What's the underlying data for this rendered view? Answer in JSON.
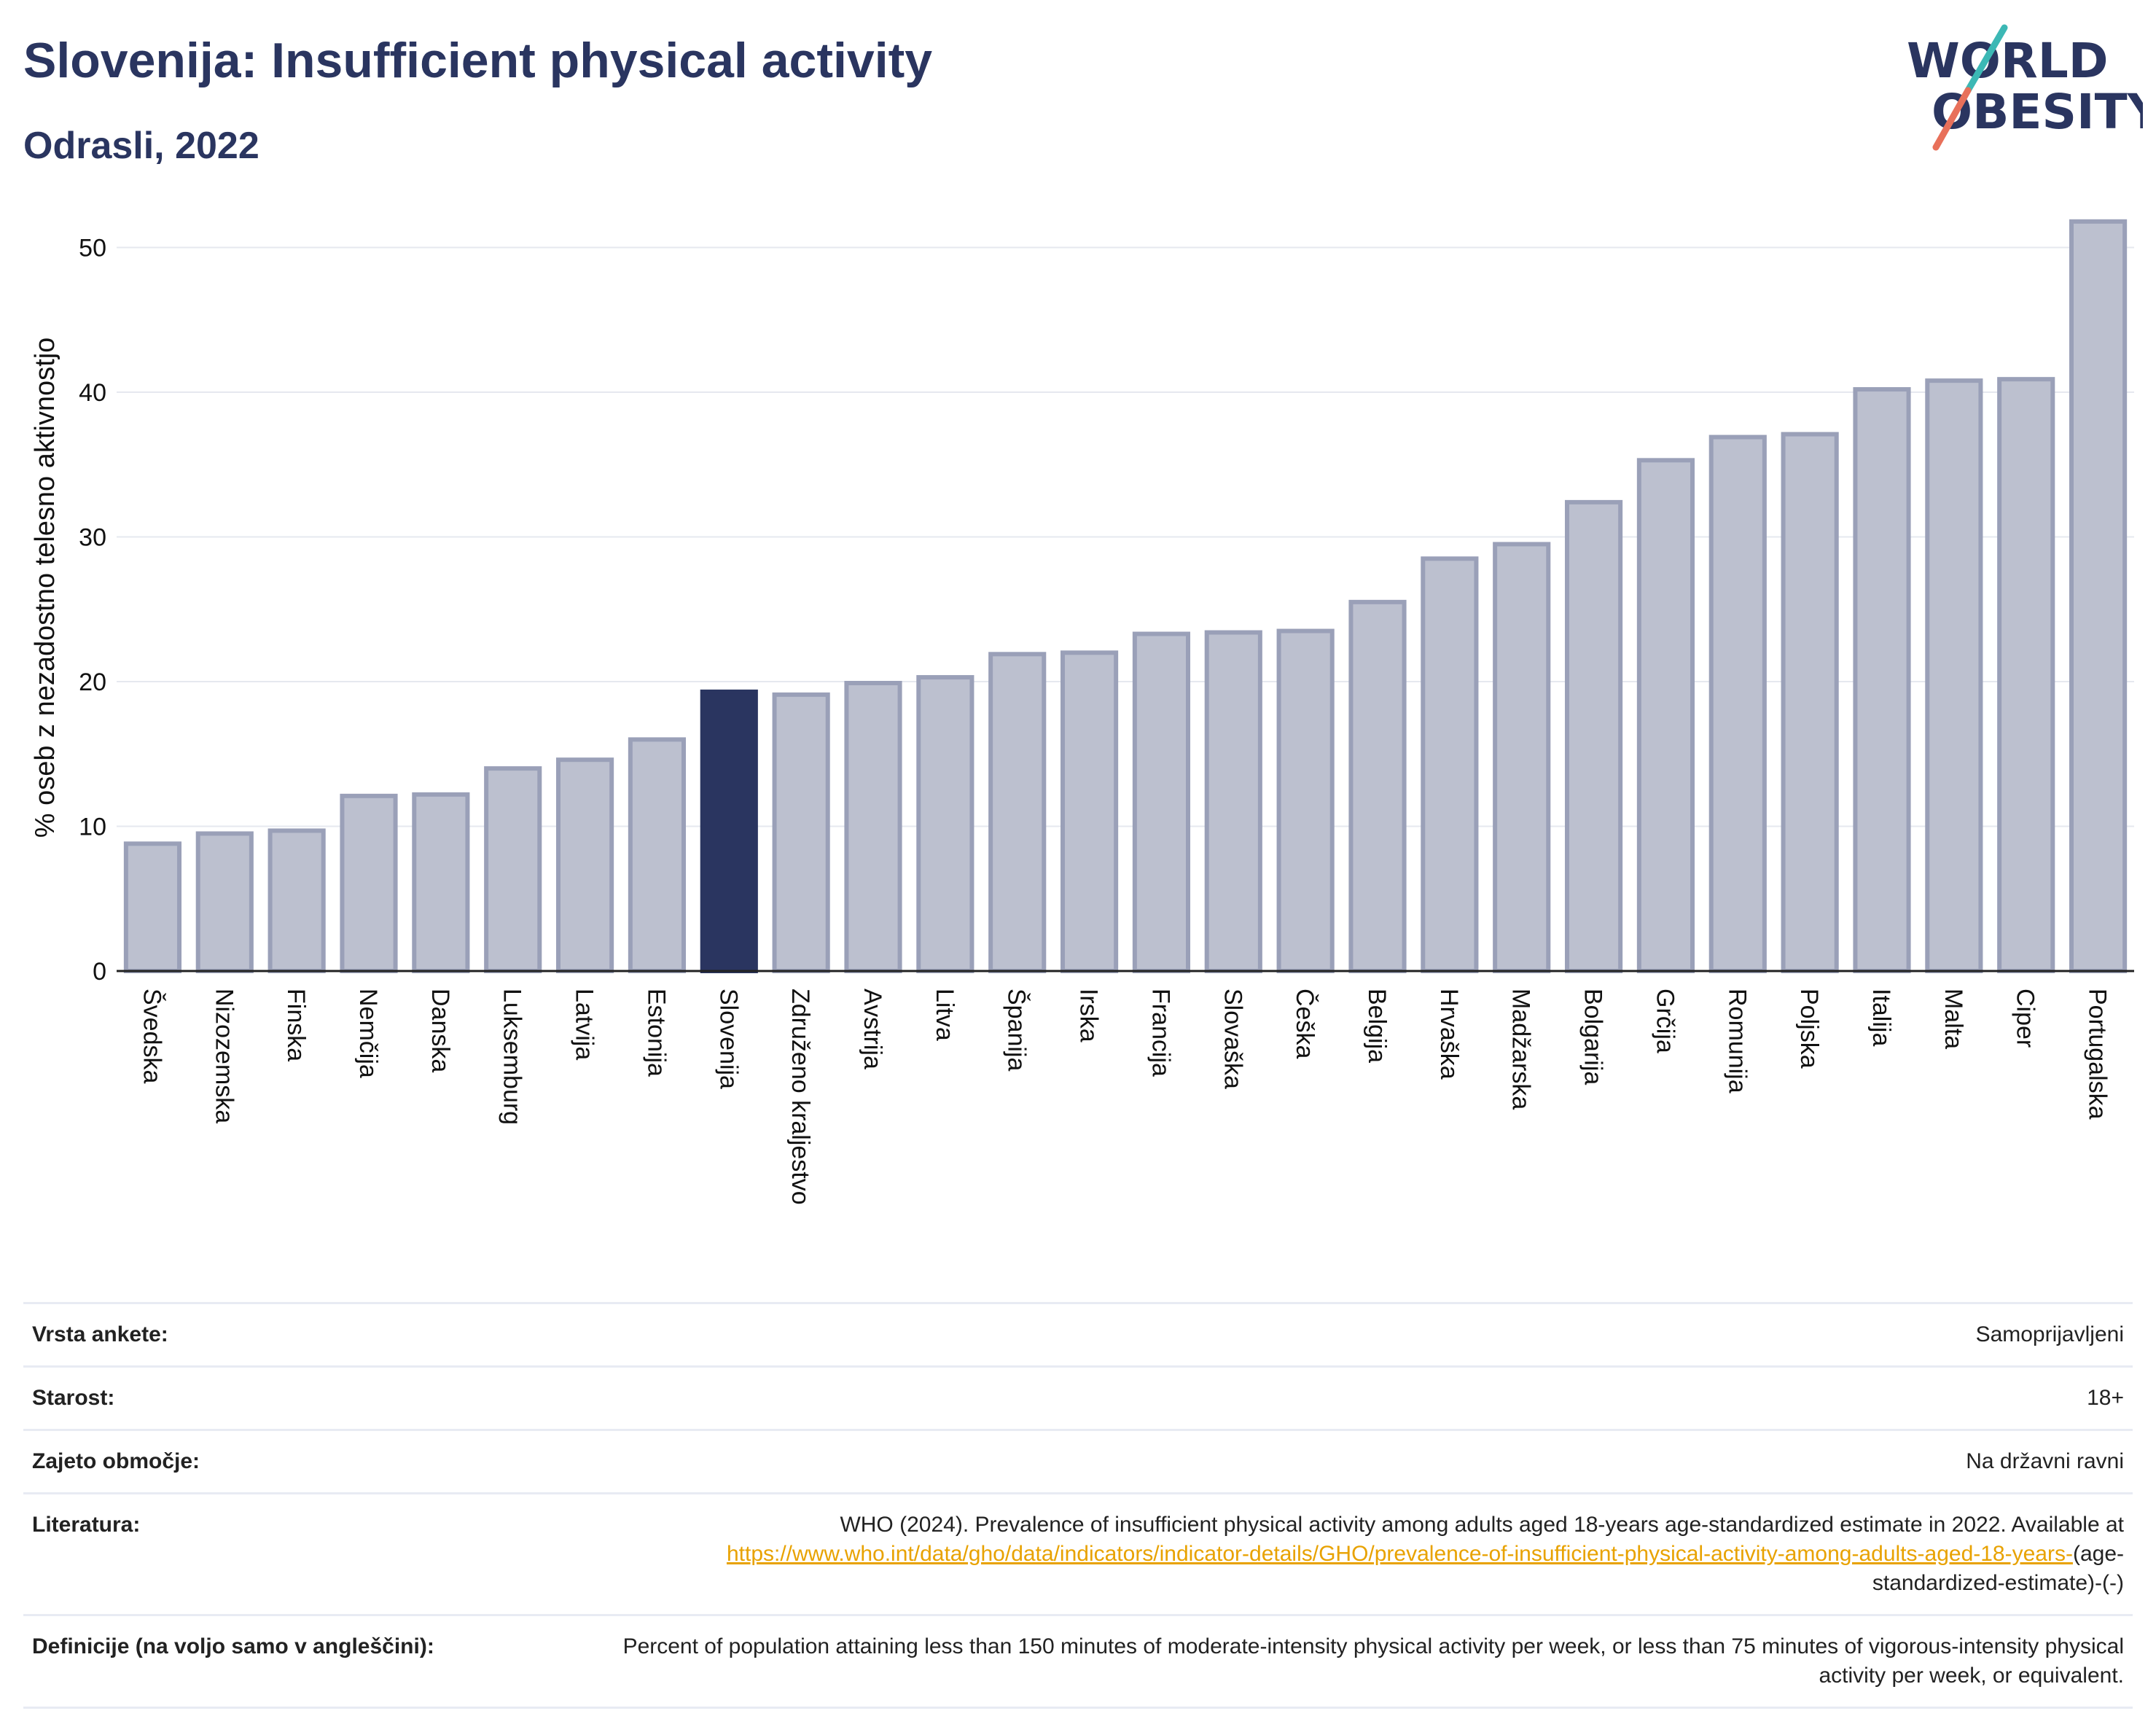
{
  "header": {
    "title": "Slovenija: Insufficient physical activity",
    "subtitle": "Odrasli, 2022"
  },
  "logo": {
    "line1": "WORLD",
    "line2": "OBESITY",
    "colors": [
      "#2a3560",
      "#3cb8b5",
      "#e8705a"
    ]
  },
  "colors": {
    "bar": "#bcc0cf",
    "bar_border": "#9aa0b8",
    "highlight": "#2a3560",
    "grid": "#e6e8ef",
    "axis": "#222222"
  },
  "chart_data": {
    "type": "bar",
    "title": "Slovenija: Insufficient physical activity",
    "subtitle": "Odrasli, 2022",
    "ylabel": "% oseb z nezadostno telesno aktivnostjo",
    "xlabel": "",
    "ylim": [
      0,
      53
    ],
    "yticks": [
      0,
      10,
      20,
      30,
      40,
      50
    ],
    "grid": true,
    "highlight": "Slovenija",
    "categories": [
      "Švedska",
      "Nizozemska",
      "Finska",
      "Nemčija",
      "Danska",
      "Luksemburg",
      "Latvija",
      "Estonija",
      "Slovenija",
      "Združeno kraljestvo",
      "Avstrija",
      "Litva",
      "Španija",
      "Irska",
      "Francija",
      "Slovaška",
      "Češka",
      "Belgija",
      "Hrvaška",
      "Madžarska",
      "Bolgarija",
      "Grčija",
      "Romunija",
      "Poljska",
      "Italija",
      "Malta",
      "Ciper",
      "Portugalska"
    ],
    "values": [
      8.8,
      9.5,
      9.7,
      12.1,
      12.2,
      14.0,
      14.6,
      16.0,
      19.3,
      19.1,
      19.9,
      20.3,
      21.9,
      22.0,
      23.3,
      23.4,
      23.5,
      25.5,
      28.5,
      29.5,
      32.4,
      35.3,
      36.9,
      37.1,
      40.2,
      40.8,
      40.9,
      51.8
    ]
  },
  "info": [
    {
      "label": "Vrsta ankete:",
      "value": "Samoprijavljeni"
    },
    {
      "label": "Starost:",
      "value": "18+"
    },
    {
      "label": "Zajeto območje:",
      "value": "Na državni ravni"
    },
    {
      "label": "Literatura:",
      "value": "WHO (2024). Prevalence of insufficient physical activity among adults aged 18-years age-standardized estimate in 2022. Available at",
      "link": "https://www.who.int/data/gho/data/indicators/indicator-details/GHO/prevalence-of-insufficient-physical-activity-among-adults-aged-18-years-",
      "suffix": "(age-standardized-estimate)-(-)"
    },
    {
      "label": "Definicije (na voljo samo v angleščini):",
      "value": "Percent of population attaining less than 150 minutes of moderate-intensity physical activity per week, or less than 75 minutes of vigorous-intensity physical activity per week, or equivalent."
    }
  ]
}
